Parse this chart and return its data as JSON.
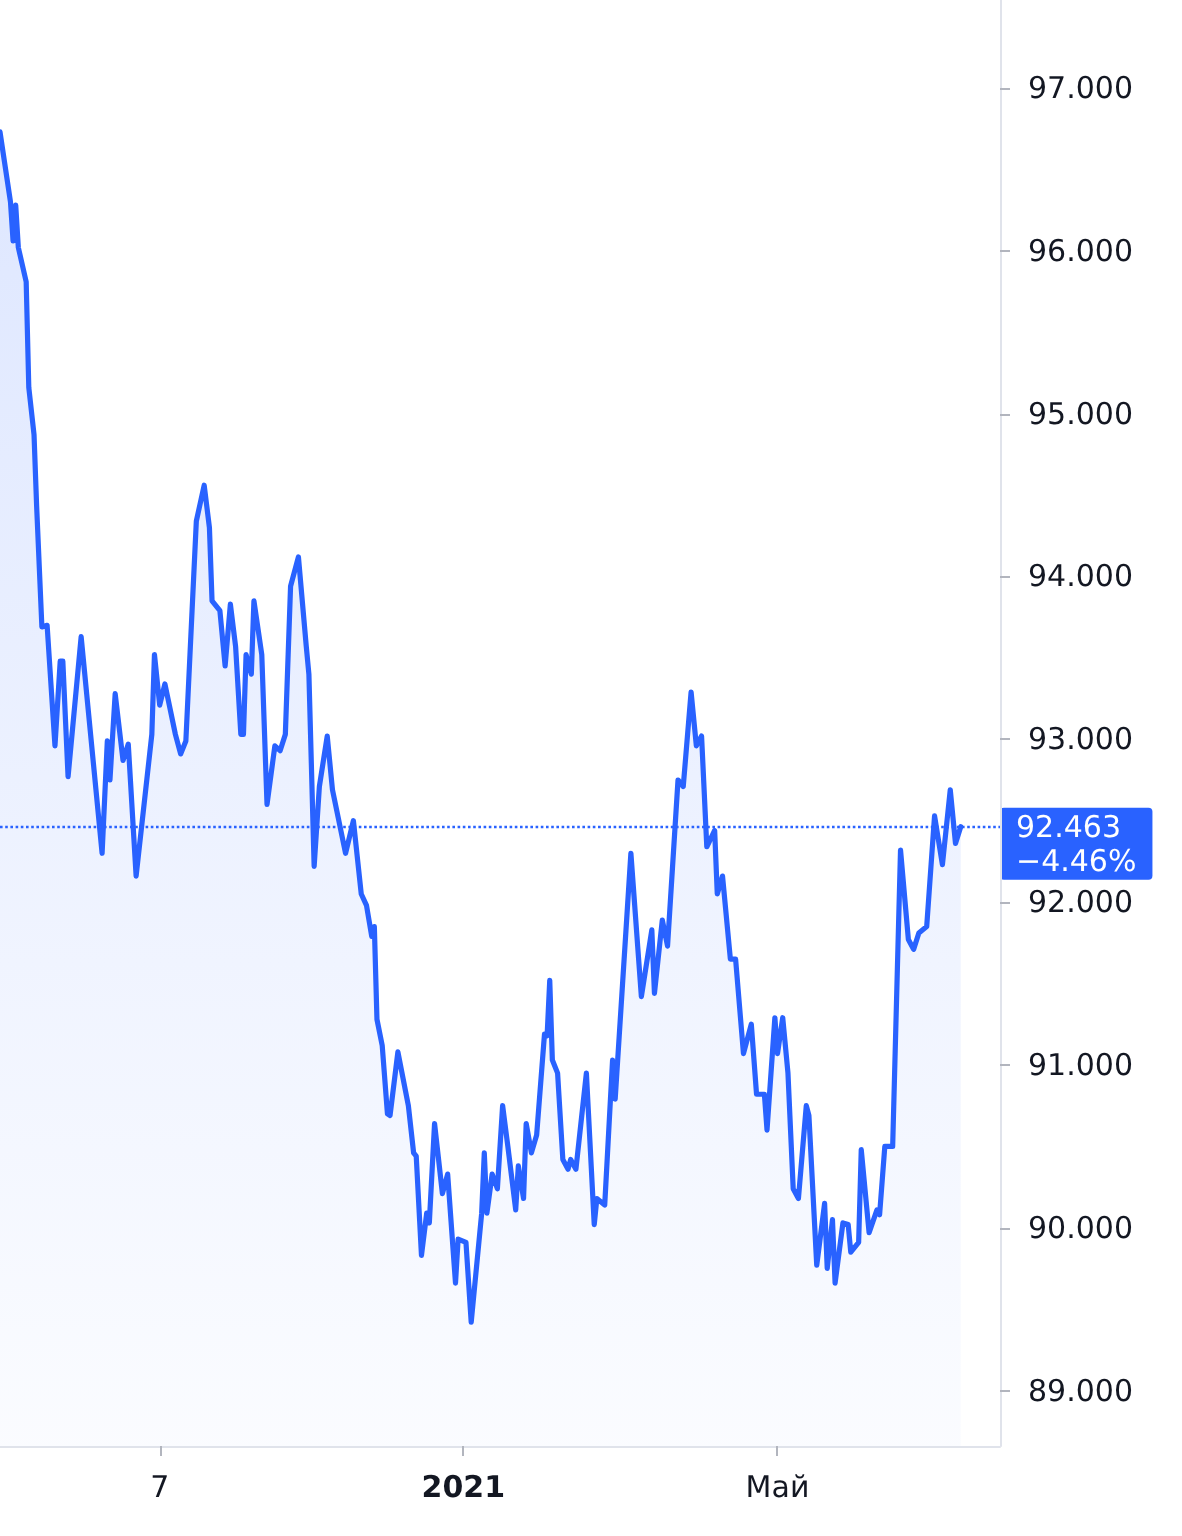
{
  "chart_data": {
    "type": "area",
    "color": "#2962ff",
    "marker": "none",
    "line_style": "solid",
    "x": [
      "2020-07-08",
      "2020-07-12",
      "2020-07-13",
      "2020-07-14",
      "2020-07-15",
      "2020-07-18",
      "2020-07-19",
      "2020-07-21",
      "2020-07-22",
      "2020-07-24",
      "2020-07-26",
      "2020-07-29",
      "2020-07-31",
      "2020-08-01",
      "2020-08-03",
      "2020-08-08",
      "2020-08-16",
      "2020-08-18",
      "2020-08-19",
      "2020-08-21",
      "2020-08-24",
      "2020-08-26",
      "2020-08-29",
      "2020-09-04",
      "2020-09-05",
      "2020-09-07",
      "2020-09-09",
      "2020-09-13",
      "2020-09-15",
      "2020-09-17",
      "2020-09-21",
      "2020-09-24",
      "2020-09-26",
      "2020-09-27",
      "2020-09-30",
      "2020-10-02",
      "2020-10-04",
      "2020-10-06",
      "2020-10-08",
      "2020-10-09",
      "2020-10-10",
      "2020-10-12",
      "2020-10-13",
      "2020-10-16",
      "2020-10-18",
      "2020-10-21",
      "2020-10-23",
      "2020-10-25",
      "2020-10-27",
      "2020-10-30",
      "2020-11-02",
      "2020-11-03",
      "2020-11-05",
      "2020-11-07",
      "2020-11-10",
      "2020-11-12",
      "2020-11-17",
      "2020-11-20",
      "2020-11-23",
      "2020-11-25",
      "2020-11-27",
      "2020-11-28",
      "2020-11-29",
      "2020-12-01",
      "2020-12-03",
      "2020-12-04",
      "2020-12-07",
      "2020-12-11",
      "2020-12-13",
      "2020-12-14",
      "2020-12-16",
      "2020-12-18",
      "2020-12-19",
      "2020-12-21",
      "2020-12-24",
      "2020-12-26",
      "2020-12-29",
      "2020-12-30",
      "2021-01-02",
      "2021-01-04",
      "2021-01-08",
      "2021-01-09",
      "2021-01-10",
      "2021-01-12",
      "2021-01-14",
      "2021-01-16",
      "2021-01-18",
      "2021-01-21",
      "2021-01-22",
      "2021-01-24",
      "2021-01-25",
      "2021-01-27",
      "2021-01-29",
      "2021-02-01",
      "2021-02-02",
      "2021-02-03",
      "2021-02-04",
      "2021-02-06",
      "2021-02-08",
      "2021-02-10",
      "2021-02-11",
      "2021-02-13",
      "2021-02-17",
      "2021-02-20",
      "2021-02-21",
      "2021-02-24",
      "2021-02-27",
      "2021-02-28",
      "2021-03-06",
      "2021-03-10",
      "2021-03-14",
      "2021-03-15",
      "2021-03-18",
      "2021-03-20",
      "2021-03-24",
      "2021-03-26",
      "2021-03-29",
      "2021-03-31",
      "2021-04-02",
      "2021-04-04",
      "2021-04-07",
      "2021-04-08",
      "2021-04-10",
      "2021-04-13",
      "2021-04-15",
      "2021-04-18",
      "2021-04-21",
      "2021-04-23",
      "2021-04-26",
      "2021-04-27",
      "2021-04-30",
      "2021-05-01",
      "2021-05-03",
      "2021-05-05",
      "2021-05-07",
      "2021-05-09",
      "2021-05-12",
      "2021-05-13",
      "2021-05-16",
      "2021-05-19",
      "2021-05-20",
      "2021-05-22",
      "2021-05-23",
      "2021-05-26",
      "2021-05-28",
      "2021-05-29",
      "2021-06-01",
      "2021-06-02",
      "2021-06-05",
      "2021-06-08",
      "2021-06-09",
      "2021-06-11",
      "2021-06-14",
      "2021-06-17",
      "2021-06-20",
      "2021-06-22",
      "2021-06-24",
      "2021-06-27",
      "2021-06-30",
      "2021-07-03",
      "2021-07-06",
      "2021-07-08",
      "2021-07-10"
    ],
    "values": [
      96.73,
      96.3,
      96.06,
      96.28,
      96.02,
      95.81,
      95.16,
      94.87,
      94.43,
      93.69,
      93.7,
      92.96,
      93.48,
      93.48,
      92.77,
      93.63,
      92.3,
      92.99,
      92.75,
      93.28,
      92.87,
      92.97,
      92.16,
      93.03,
      93.52,
      93.21,
      93.34,
      93.03,
      92.91,
      92.99,
      94.34,
      94.56,
      94.3,
      93.85,
      93.79,
      93.45,
      93.83,
      93.57,
      93.03,
      93.03,
      93.52,
      93.4,
      93.85,
      93.52,
      92.6,
      92.96,
      92.93,
      93.03,
      93.94,
      94.12,
      93.57,
      93.4,
      92.22,
      92.71,
      93.02,
      92.69,
      92.3,
      92.5,
      92.05,
      91.98,
      91.79,
      91.85,
      91.28,
      91.12,
      90.7,
      90.69,
      91.08,
      90.75,
      90.46,
      90.44,
      89.83,
      90.09,
      90.03,
      90.64,
      90.21,
      90.33,
      89.66,
      89.93,
      89.91,
      89.42,
      90.09,
      90.46,
      90.09,
      90.33,
      90.24,
      90.75,
      90.5,
      90.11,
      90.38,
      90.18,
      90.64,
      90.46,
      90.57,
      91.19,
      91.18,
      91.52,
      91.03,
      90.95,
      90.42,
      90.36,
      90.42,
      90.36,
      90.95,
      90.02,
      90.18,
      90.14,
      91.03,
      90.79,
      92.3,
      91.42,
      91.83,
      91.44,
      91.89,
      91.73,
      92.75,
      92.71,
      93.29,
      92.96,
      93.02,
      92.34,
      92.44,
      92.05,
      92.16,
      91.65,
      91.65,
      91.07,
      91.25,
      90.82,
      90.82,
      90.6,
      91.29,
      91.07,
      91.29,
      90.95,
      90.24,
      90.18,
      90.75,
      90.69,
      89.77,
      90.15,
      89.75,
      90.05,
      89.66,
      90.03,
      90.02,
      89.85,
      89.91,
      90.48,
      89.97,
      90.11,
      90.08,
      90.5,
      90.5,
      92.32,
      91.77,
      91.71,
      91.81,
      91.85,
      92.53,
      92.23,
      92.69,
      92.36,
      92.463
    ],
    "xlim": [
      "2020-07-08",
      "2021-07-25"
    ],
    "xticks": [
      {
        "value": "2020-09-07",
        "label": "7"
      },
      {
        "value": "2021-01-01",
        "label": "2021"
      },
      {
        "value": "2021-05-01",
        "label": "Май"
      }
    ],
    "ylim": [
      88.66,
      97.54
    ],
    "yticks": [
      {
        "value": 89,
        "label": "89.000"
      },
      {
        "value": 90,
        "label": "90.000"
      },
      {
        "value": 91,
        "label": "91.000"
      },
      {
        "value": 92,
        "label": "92.000"
      },
      {
        "value": 93,
        "label": "93.000"
      },
      {
        "value": 94,
        "label": "94.000"
      },
      {
        "value": 95,
        "label": "95.000"
      },
      {
        "value": 96,
        "label": "96.000"
      },
      {
        "value": 97,
        "label": "97.000"
      }
    ],
    "ref_lines": [
      {
        "axis": "y",
        "value": 92.463,
        "label": "92.463",
        "color": "#2962ff",
        "line_style": "dotted"
      }
    ],
    "annotations": [
      "−4.46%"
    ]
  }
}
